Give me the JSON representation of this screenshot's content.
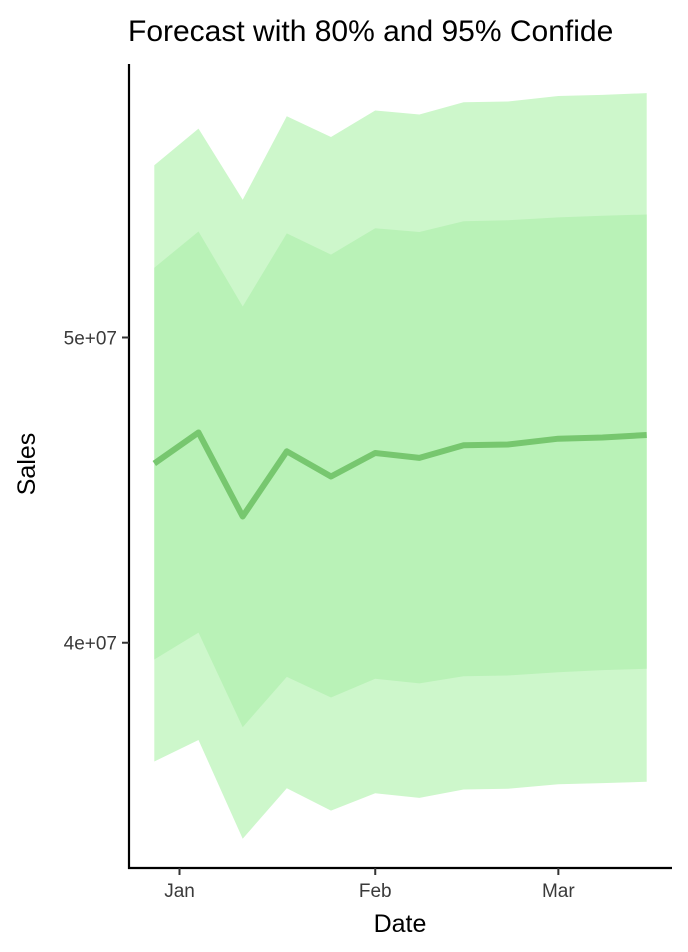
{
  "chart_data": {
    "type": "area",
    "title": "Forecast with 80% and 95% Confide",
    "xlabel": "Date",
    "ylabel": "Sales",
    "x_ticks": [
      "Jan",
      "Feb",
      "Mar"
    ],
    "y_ticks": [
      "4e+07",
      "5e+07"
    ],
    "x": [
      "2023-12-28",
      "2024-01-04",
      "2024-01-11",
      "2024-01-18",
      "2024-01-25",
      "2024-02-01",
      "2024-02-08",
      "2024-02-15",
      "2024-02-22",
      "2024-03-01",
      "2024-03-08",
      "2024-03-15"
    ],
    "xlim": [
      "2023-12-24",
      "2024-03-19"
    ],
    "ylim": [
      32620000,
      58960000
    ],
    "grid": false,
    "legend": "none",
    "series": [
      {
        "role": "forecast",
        "color": "#77c76f",
        "values": [
          45873000,
          46887000,
          44137000,
          46270000,
          45445000,
          46215000,
          46056000,
          46471000,
          46495000,
          46683000,
          46725000,
          46806000
        ]
      },
      {
        "role": "interval-80",
        "color": "#b9f2b7",
        "lower": [
          39451000,
          40333000,
          37232000,
          38882000,
          38207000,
          38817000,
          38668000,
          38901000,
          38926000,
          39036000,
          39105000,
          39146000
        ],
        "upper": [
          52288000,
          53474000,
          51015000,
          53409000,
          52717000,
          53578000,
          53455000,
          53807000,
          53838000,
          53934000,
          53989000,
          54031000
        ]
      },
      {
        "role": "interval-95",
        "color": "#cdf7cb",
        "lower": [
          36109000,
          36813000,
          33581000,
          35230000,
          34500000,
          35068000,
          34916000,
          35193000,
          35216000,
          35363000,
          35401000,
          35443000
        ],
        "upper": [
          55646000,
          56844000,
          54510000,
          57245000,
          56567000,
          57438000,
          57307000,
          57706000,
          57731000,
          57911000,
          57948000,
          58007000
        ]
      }
    ]
  }
}
